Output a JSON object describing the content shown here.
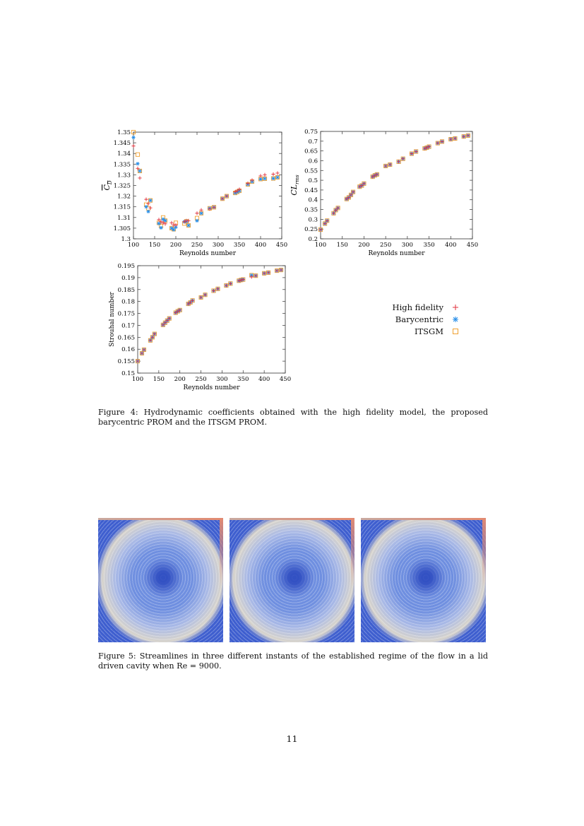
{
  "legend": {
    "items": [
      {
        "label": "High fidelity",
        "marker": "plus",
        "color": "#e0323c"
      },
      {
        "label": "Barycentric",
        "marker": "asterisk",
        "color": "#2a8fe8"
      },
      {
        "label": "ITSGM",
        "marker": "square",
        "color": "#f0a030"
      }
    ]
  },
  "chart_data": [
    {
      "type": "scatter",
      "xlabel": "Reynolds number",
      "ylabel": {
        "main": "C",
        "sub": "D",
        "overline": true
      },
      "xlim": [
        100,
        450
      ],
      "xticks": [
        100,
        150,
        200,
        250,
        300,
        350,
        400,
        450
      ],
      "ylim": [
        1.3,
        1.35
      ],
      "yticks": [
        1.3,
        1.305,
        1.31,
        1.315,
        1.32,
        1.325,
        1.33,
        1.335,
        1.34,
        1.345,
        1.35
      ],
      "x": [
        100,
        110,
        115,
        130,
        135,
        140,
        160,
        165,
        170,
        175,
        190,
        195,
        200,
        220,
        225,
        230,
        250,
        260,
        280,
        290,
        310,
        320,
        340,
        345,
        350,
        370,
        380,
        400,
        410,
        430,
        440
      ],
      "series": [
        {
          "name": "High fidelity",
          "values": [
            1.3435,
            1.333,
            1.3285,
            1.3185,
            1.3165,
            1.3145,
            1.309,
            1.308,
            1.3075,
            1.307,
            1.3075,
            1.3065,
            1.3065,
            1.308,
            1.3085,
            1.3085,
            1.312,
            1.3135,
            1.314,
            1.3148,
            1.3188,
            1.32,
            1.322,
            1.3225,
            1.3232,
            1.326,
            1.3275,
            1.3295,
            1.33,
            1.3303,
            1.3308
          ]
        },
        {
          "name": "Barycentric",
          "values": [
            1.3475,
            1.3352,
            1.3318,
            1.315,
            1.3128,
            1.318,
            1.3072,
            1.3052,
            1.3092,
            1.3085,
            1.305,
            1.3043,
            1.3055,
            1.308,
            1.3082,
            1.3063,
            1.3085,
            1.312,
            1.3143,
            1.3148,
            1.3188,
            1.32,
            1.3215,
            1.322,
            1.3225,
            1.3255,
            1.3268,
            1.328,
            1.3282,
            1.3283,
            1.3288
          ]
        },
        {
          "name": "ITSGM",
          "values": [
            1.35,
            1.3395,
            1.3318,
            1.316,
            1.3143,
            1.318,
            1.3075,
            1.306,
            1.31,
            1.3085,
            1.305,
            1.3045,
            1.3075,
            1.3072,
            1.3082,
            1.3063,
            1.3097,
            1.312,
            1.3143,
            1.3148,
            1.3188,
            1.32,
            1.3215,
            1.322,
            1.3225,
            1.3255,
            1.3268,
            1.328,
            1.3282,
            1.3283,
            1.3288
          ]
        }
      ]
    },
    {
      "type": "scatter",
      "xlabel": "Reynolds number",
      "ylabel": {
        "main": "CL",
        "sub": "rms",
        "overline": false
      },
      "xlim": [
        100,
        450
      ],
      "xticks": [
        100,
        150,
        200,
        250,
        300,
        350,
        400,
        450
      ],
      "ylim": [
        0.2,
        0.75
      ],
      "yticks": [
        0.2,
        0.25,
        0.3,
        0.35,
        0.4,
        0.45,
        0.5,
        0.55,
        0.6,
        0.65,
        0.7,
        0.75
      ],
      "x": [
        100,
        110,
        115,
        130,
        135,
        140,
        160,
        165,
        170,
        175,
        190,
        195,
        200,
        220,
        225,
        230,
        250,
        260,
        280,
        290,
        310,
        320,
        340,
        345,
        350,
        370,
        380,
        400,
        410,
        430,
        440
      ],
      "series": [
        {
          "name": "High fidelity",
          "values": [
            0.247,
            0.278,
            0.293,
            0.331,
            0.347,
            0.358,
            0.404,
            0.412,
            0.425,
            0.44,
            0.467,
            0.473,
            0.483,
            0.518,
            0.525,
            0.53,
            0.573,
            0.58,
            0.595,
            0.61,
            0.636,
            0.647,
            0.663,
            0.667,
            0.672,
            0.69,
            0.698,
            0.71,
            0.714,
            0.724,
            0.729
          ]
        },
        {
          "name": "Barycentric",
          "values": [
            0.247,
            0.278,
            0.293,
            0.331,
            0.347,
            0.358,
            0.404,
            0.412,
            0.425,
            0.44,
            0.467,
            0.473,
            0.483,
            0.518,
            0.525,
            0.53,
            0.573,
            0.58,
            0.595,
            0.61,
            0.636,
            0.647,
            0.663,
            0.667,
            0.672,
            0.69,
            0.698,
            0.71,
            0.714,
            0.724,
            0.729
          ]
        },
        {
          "name": "ITSGM",
          "values": [
            0.247,
            0.278,
            0.293,
            0.331,
            0.347,
            0.358,
            0.404,
            0.412,
            0.425,
            0.44,
            0.467,
            0.473,
            0.483,
            0.518,
            0.525,
            0.53,
            0.573,
            0.58,
            0.595,
            0.61,
            0.636,
            0.647,
            0.663,
            0.667,
            0.672,
            0.69,
            0.698,
            0.71,
            0.714,
            0.724,
            0.729
          ]
        }
      ]
    },
    {
      "type": "scatter",
      "xlabel": "Reynolds number",
      "ylabel": {
        "main": "Strouhal number",
        "sub": "",
        "overline": false
      },
      "xlim": [
        100,
        450
      ],
      "xticks": [
        100,
        150,
        200,
        250,
        300,
        350,
        400,
        450
      ],
      "ylim": [
        0.15,
        0.195
      ],
      "yticks": [
        0.15,
        0.155,
        0.16,
        0.165,
        0.17,
        0.175,
        0.18,
        0.185,
        0.19,
        0.195
      ],
      "x": [
        100,
        110,
        115,
        130,
        135,
        140,
        160,
        165,
        170,
        175,
        190,
        195,
        200,
        220,
        225,
        230,
        250,
        260,
        280,
        290,
        310,
        320,
        340,
        345,
        350,
        370,
        380,
        400,
        410,
        430,
        440
      ],
      "series": [
        {
          "name": "High fidelity",
          "values": [
            0.155,
            0.1583,
            0.1598,
            0.1637,
            0.165,
            0.1664,
            0.1702,
            0.1711,
            0.172,
            0.1729,
            0.1753,
            0.1759,
            0.1764,
            0.179,
            0.1796,
            0.1804,
            0.1817,
            0.1828,
            0.1845,
            0.1853,
            0.1867,
            0.1875,
            0.1887,
            0.189,
            0.1892,
            0.1903,
            0.1908,
            0.1918,
            0.1921,
            0.1929,
            0.1932
          ]
        },
        {
          "name": "Barycentric",
          "values": [
            0.155,
            0.1583,
            0.1598,
            0.1637,
            0.165,
            0.1664,
            0.1702,
            0.1711,
            0.172,
            0.1729,
            0.1753,
            0.1759,
            0.1764,
            0.179,
            0.1796,
            0.1804,
            0.1817,
            0.1828,
            0.1845,
            0.1853,
            0.1867,
            0.1875,
            0.1887,
            0.189,
            0.1892,
            0.191,
            0.1908,
            0.1918,
            0.1921,
            0.1929,
            0.1932
          ]
        },
        {
          "name": "ITSGM",
          "values": [
            0.155,
            0.1583,
            0.1598,
            0.1637,
            0.165,
            0.1664,
            0.1702,
            0.1711,
            0.172,
            0.1729,
            0.1753,
            0.1759,
            0.1764,
            0.179,
            0.1796,
            0.1804,
            0.1817,
            0.1828,
            0.1845,
            0.1853,
            0.1867,
            0.1875,
            0.1887,
            0.189,
            0.1892,
            0.191,
            0.1908,
            0.1918,
            0.1921,
            0.1929,
            0.1932
          ]
        }
      ]
    }
  ],
  "figure4": {
    "caption": "Figure 4: Hydrodynamic coefficients obtained with the high fidelity model, the proposed barycentric PROM and the ITSGM PROM."
  },
  "figure5": {
    "caption": "Figure 5: Streamlines in three different instants of the established regime of the flow in a lid driven cavity when Re = 9000."
  },
  "page_number": "11"
}
